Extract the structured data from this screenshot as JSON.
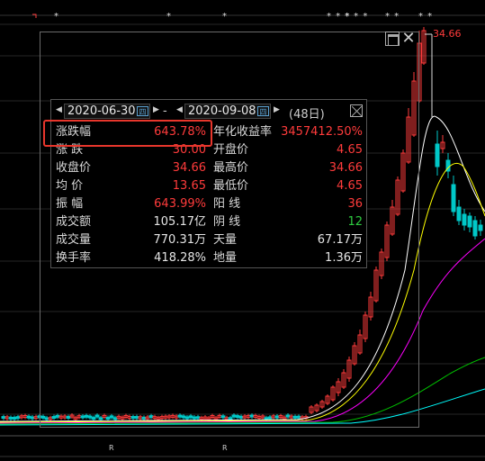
{
  "chart": {
    "high_price_label": "34.66",
    "top_marks": [
      "*",
      "*",
      "*",
      "* * *",
      "* * *",
      "* *",
      "* *"
    ],
    "bottom_marks": [
      "R",
      "R"
    ]
  },
  "dialog": {
    "start_date": "2020-06-30",
    "end_date": "2020-09-08",
    "calendar_glyph": "四",
    "separator": "-",
    "days": "(48日)",
    "rows": [
      {
        "l1": "涨跌幅",
        "v1": "643.78%",
        "c1": "red",
        "l2": "年化收益率",
        "v2": "3457412.50%",
        "c2": "red"
      },
      {
        "l1": "涨  跌",
        "v1": "30.00",
        "c1": "red",
        "l2": "开盘价",
        "v2": "4.65",
        "c2": "red"
      },
      {
        "l1": "收盘价",
        "v1": "34.66",
        "c1": "red",
        "l2": "最高价",
        "v2": "34.66",
        "c2": "red"
      },
      {
        "l1": "均  价",
        "v1": "13.65",
        "c1": "red",
        "l2": "最低价",
        "v2": "4.65",
        "c2": "red"
      },
      {
        "l1": "振  幅",
        "v1": "643.99%",
        "c1": "red",
        "l2": "阳  线",
        "v2": "36",
        "c2": "red"
      },
      {
        "l1": "成交额",
        "v1": "105.17亿",
        "c1": "white",
        "l2": "阴  线",
        "v2": "12",
        "c2": "green"
      },
      {
        "l1": "成交量",
        "v1": "770.31万",
        "c1": "white",
        "l2": "天量",
        "v2": "67.17万",
        "c2": "white"
      },
      {
        "l1": "换手率",
        "v1": "418.28%",
        "c1": "white",
        "l2": "地量",
        "v2": "1.36万",
        "c2": "white"
      }
    ]
  },
  "colors": {
    "up": "#ff3b3b",
    "down": "#00c8c8",
    "ma5": "#ffffff",
    "ma10": "#ffff00",
    "ma20": "#ff00ff",
    "ma60": "#00c000",
    "ma120": "#00ffff"
  }
}
